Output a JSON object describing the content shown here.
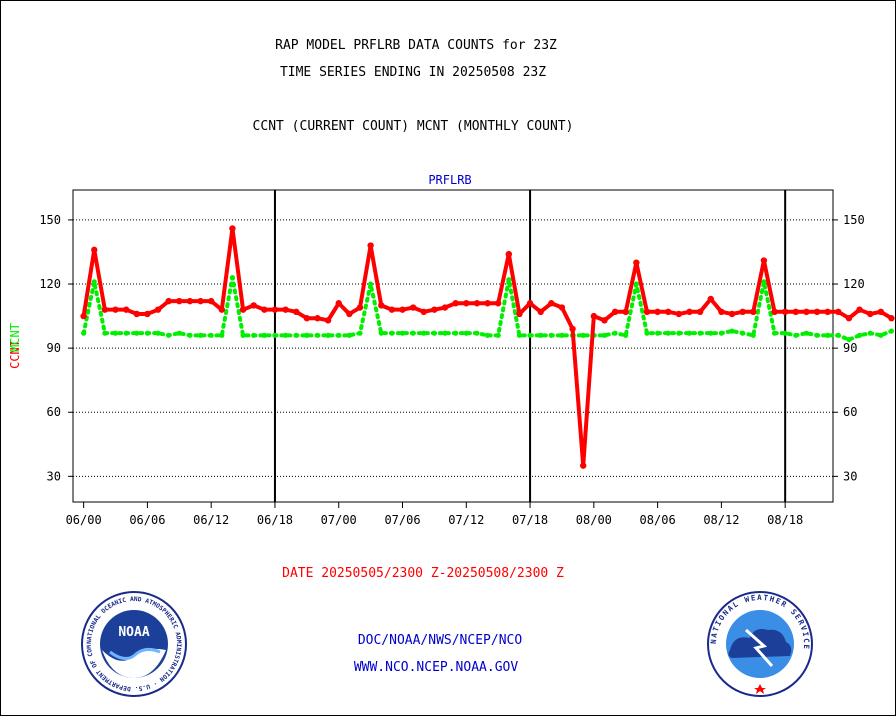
{
  "header": {
    "title_line1": "RAP MODEL PRFLRB DATA COUNTS for 23Z",
    "title_line2": "TIME SERIES ENDING IN 20250508 23Z",
    "subtitle": "CCNT (CURRENT COUNT) MCNT (MONTHLY COUNT)"
  },
  "footer": {
    "date_range": "DATE 20250505/2300 Z-20250508/2300 Z",
    "link_path": "DOC/NOAA/NWS/NCEP/NCO",
    "link_url": "WWW.NCO.NCEP.NOAA.GOV"
  },
  "logos": {
    "left_text": "NOAA",
    "left_ring_text": "NATIONAL OCEANIC AND ATMOSPHERIC ADMINISTRATION · U.S. DEPARTMENT OF COMMERCE",
    "right_ring_text": "NATIONAL WEATHER SERVICE"
  },
  "colors": {
    "ccnt": "#ff0000",
    "mcnt": "#00ee00",
    "panel_title": "#0000cc",
    "date_text": "#ff0000",
    "link_text": "#0000cc"
  },
  "chart_data": {
    "type": "line",
    "title": "PRFLRB",
    "ylabel_parts": [
      "CCNT",
      "MCNT"
    ],
    "ylim": [
      18,
      164
    ],
    "yticks": [
      30,
      60,
      90,
      120,
      150
    ],
    "hour_range": [
      -2,
      141
    ],
    "xtick_labels": [
      "06/00",
      "06/06",
      "06/12",
      "06/18",
      "07/00",
      "07/06",
      "07/12",
      "07/18",
      "08/00",
      "08/06",
      "08/12",
      "08/18"
    ],
    "day_boundaries": [
      36,
      84,
      132
    ],
    "grid": true,
    "series": [
      {
        "name": "CCNT",
        "values": [
          105,
          136,
          108,
          108,
          108,
          106,
          106,
          108,
          112,
          112,
          112,
          112,
          112,
          108,
          146,
          108,
          110,
          108,
          108,
          108,
          107,
          104,
          104,
          103,
          111,
          106,
          109,
          138,
          110,
          108,
          108,
          109,
          107,
          108,
          109,
          111,
          111,
          111,
          111,
          111,
          134,
          106,
          111,
          107,
          111,
          109,
          99,
          35,
          105,
          103,
          107,
          107,
          130,
          107,
          107,
          107,
          106,
          107,
          107,
          113,
          107,
          106,
          107,
          107,
          131,
          107,
          107,
          107,
          107,
          107,
          107,
          107,
          104,
          108,
          106,
          107,
          104
        ]
      },
      {
        "name": "MCNT",
        "values": [
          97,
          121,
          97,
          97,
          97,
          97,
          97,
          97,
          96,
          97,
          96,
          96,
          96,
          96,
          123,
          96,
          96,
          96,
          96,
          96,
          96,
          96,
          96,
          96,
          96,
          96,
          97,
          120,
          97,
          97,
          97,
          97,
          97,
          97,
          97,
          97,
          97,
          97,
          96,
          96,
          122,
          96,
          96,
          96,
          96,
          96,
          96,
          96,
          96,
          96,
          97,
          96,
          120,
          97,
          97,
          97,
          97,
          97,
          97,
          97,
          97,
          98,
          97,
          96,
          121,
          97,
          97,
          96,
          97,
          96,
          96,
          96,
          94,
          96,
          97,
          96,
          98
        ]
      }
    ]
  }
}
